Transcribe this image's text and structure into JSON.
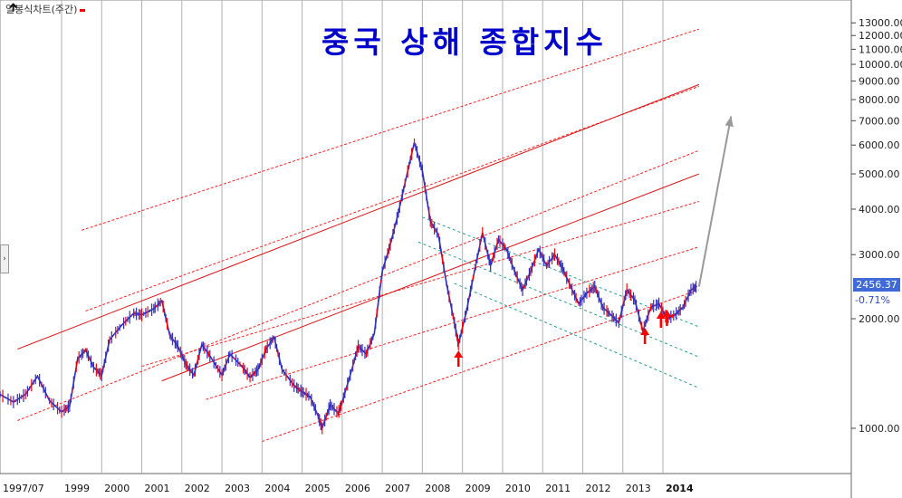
{
  "title": "중국 상해 종합지수",
  "legend": {
    "label": "일봉식차트(주간)",
    "color": "#ff0000"
  },
  "cursor_icon": "arrow-cursor",
  "side_tab": "›",
  "last_price": {
    "value": "2456.37",
    "change": "-0.71%"
  },
  "chart_data": {
    "type": "line",
    "title": "중국 상해 종합지수",
    "xlabel": "",
    "ylabel": "",
    "y_scale": "log",
    "ylim": [
      800,
      15000
    ],
    "x_tick_labels": [
      "1997/07",
      "1999",
      "2000",
      "2001",
      "2002",
      "2003",
      "2004",
      "2005",
      "2006",
      "2007",
      "2008",
      "2009",
      "2010",
      "2011",
      "2012",
      "2013",
      "2014"
    ],
    "y_tick_labels": [
      "1000.00",
      "2000.00",
      "3000.00",
      "4000.00",
      "5000.00",
      "6000.00",
      "7000.00",
      "8000.00",
      "9000.00",
      "10000.00",
      "11000.00",
      "12000.00",
      "13000.00"
    ],
    "y_tick_values": [
      1000,
      2000,
      3000,
      4000,
      5000,
      6000,
      7000,
      8000,
      9000,
      10000,
      11000,
      12000,
      13000
    ],
    "price_color": "#3030c0",
    "down_color": "#ff0000",
    "series": [
      {
        "values": [
          [
            1997.0,
            1220
          ],
          [
            1997.4,
            1250
          ],
          [
            1997.8,
            1180
          ],
          [
            1998.1,
            1240
          ],
          [
            1998.4,
            1390
          ],
          [
            1998.7,
            1190
          ],
          [
            1999.0,
            1110
          ],
          [
            1999.2,
            1150
          ],
          [
            1999.4,
            1550
          ],
          [
            1999.6,
            1640
          ],
          [
            1999.8,
            1470
          ],
          [
            2000.0,
            1400
          ],
          [
            2000.2,
            1750
          ],
          [
            2000.5,
            1920
          ],
          [
            2000.8,
            2070
          ],
          [
            2001.0,
            2050
          ],
          [
            2001.3,
            2130
          ],
          [
            2001.5,
            2240
          ],
          [
            2001.7,
            1800
          ],
          [
            2001.9,
            1680
          ],
          [
            2002.1,
            1500
          ],
          [
            2002.3,
            1400
          ],
          [
            2002.5,
            1700
          ],
          [
            2002.7,
            1580
          ],
          [
            2003.0,
            1400
          ],
          [
            2003.2,
            1600
          ],
          [
            2003.5,
            1480
          ],
          [
            2003.7,
            1380
          ],
          [
            2003.9,
            1450
          ],
          [
            2004.1,
            1650
          ],
          [
            2004.3,
            1780
          ],
          [
            2004.5,
            1450
          ],
          [
            2004.8,
            1310
          ],
          [
            2005.0,
            1260
          ],
          [
            2005.2,
            1220
          ],
          [
            2005.4,
            1080
          ],
          [
            2005.5,
            1000
          ],
          [
            2005.7,
            1160
          ],
          [
            2005.9,
            1100
          ],
          [
            2006.0,
            1180
          ],
          [
            2006.2,
            1400
          ],
          [
            2006.4,
            1680
          ],
          [
            2006.6,
            1600
          ],
          [
            2006.8,
            1820
          ],
          [
            2007.0,
            2700
          ],
          [
            2007.2,
            3200
          ],
          [
            2007.4,
            3900
          ],
          [
            2007.6,
            4900
          ],
          [
            2007.8,
            6100
          ],
          [
            2008.0,
            5100
          ],
          [
            2008.2,
            3700
          ],
          [
            2008.4,
            3400
          ],
          [
            2008.6,
            2500
          ],
          [
            2008.8,
            1950
          ],
          [
            2008.9,
            1700
          ],
          [
            2009.1,
            2100
          ],
          [
            2009.3,
            2700
          ],
          [
            2009.5,
            3450
          ],
          [
            2009.7,
            2800
          ],
          [
            2009.9,
            3300
          ],
          [
            2010.1,
            3100
          ],
          [
            2010.3,
            2700
          ],
          [
            2010.5,
            2400
          ],
          [
            2010.7,
            2700
          ],
          [
            2010.9,
            3100
          ],
          [
            2011.1,
            2800
          ],
          [
            2011.3,
            3000
          ],
          [
            2011.5,
            2750
          ],
          [
            2011.7,
            2450
          ],
          [
            2011.9,
            2200
          ],
          [
            2012.1,
            2350
          ],
          [
            2012.3,
            2450
          ],
          [
            2012.5,
            2150
          ],
          [
            2012.7,
            2050
          ],
          [
            2012.9,
            1950
          ],
          [
            2013.1,
            2400
          ],
          [
            2013.3,
            2250
          ],
          [
            2013.5,
            1850
          ],
          [
            2013.7,
            2150
          ],
          [
            2013.9,
            2200
          ],
          [
            2014.1,
            2000
          ],
          [
            2014.3,
            2050
          ],
          [
            2014.5,
            2150
          ],
          [
            2014.7,
            2400
          ],
          [
            2014.85,
            2456
          ]
        ]
      }
    ],
    "channels_red": [
      [
        [
          1999.5,
          3500
        ],
        [
          2014.9,
          12500
        ]
      ],
      [
        [
          1999.6,
          2100
        ],
        [
          2014.9,
          8700
        ]
      ],
      [
        [
          1997.9,
          1050
        ],
        [
          2014.9,
          5800
        ]
      ],
      [
        [
          2001.0,
          1480
        ],
        [
          2014.9,
          4200
        ]
      ],
      [
        [
          2002.6,
          1200
        ],
        [
          2014.9,
          3150
        ]
      ],
      [
        [
          2004.0,
          920
        ],
        [
          2014.9,
          2400
        ]
      ]
    ],
    "channels_solid_red": [
      [
        [
          1997.9,
          1650
        ],
        [
          2014.9,
          8800
        ]
      ],
      [
        [
          2001.5,
          1350
        ],
        [
          2014.9,
          5000
        ]
      ]
    ],
    "channels_teal": [
      [
        [
          2008.0,
          3800
        ],
        [
          2014.9,
          1900
        ]
      ],
      [
        [
          2007.9,
          3250
        ],
        [
          2014.9,
          1570
        ]
      ],
      [
        [
          2008.8,
          2500
        ],
        [
          2014.9,
          1290
        ]
      ]
    ],
    "forecast_arrow": [
      [
        2014.9,
        2450
      ],
      [
        2015.7,
        7200
      ]
    ],
    "up_arrows_x": [
      2008.9,
      2013.55,
      2013.95,
      2014.1
    ]
  }
}
